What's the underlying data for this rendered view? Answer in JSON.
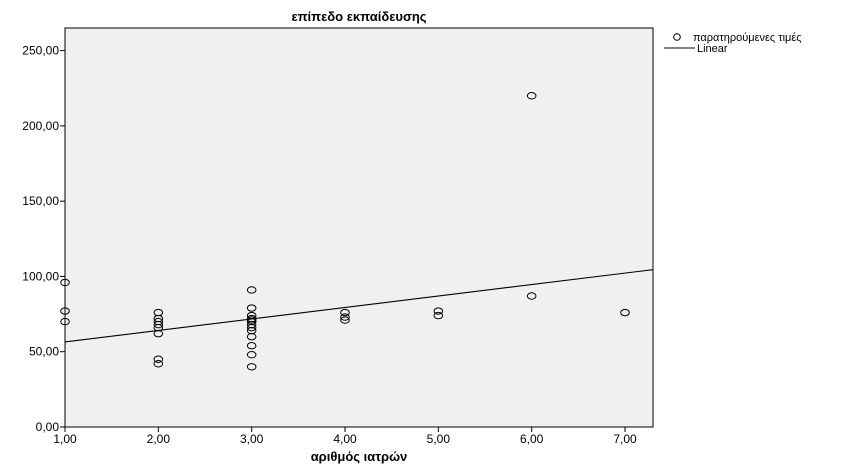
{
  "chart_data": {
    "type": "scatter",
    "title": "επίπεδο εκπαίδευσης",
    "xlabel": "αριθμός ιατρών",
    "ylabel": "",
    "xlim": [
      1.0,
      7.3
    ],
    "ylim": [
      0,
      265
    ],
    "x_ticks": [
      "1,00",
      "2,00",
      "3,00",
      "4,00",
      "5,00",
      "6,00",
      "7,00"
    ],
    "x_tick_values": [
      1,
      2,
      3,
      4,
      5,
      6,
      7
    ],
    "y_ticks": [
      "0,00",
      "50,00",
      "100,00",
      "150,00",
      "200,00",
      "250,00"
    ],
    "y_tick_values": [
      0,
      50,
      100,
      150,
      200,
      250
    ],
    "grid": false,
    "legend_position": "top-right-outside",
    "legend": [
      {
        "label": "παρατηρούμενες τιμές",
        "marker": "circle"
      },
      {
        "label": "Linear",
        "marker": "line"
      }
    ],
    "points": [
      {
        "x": 1,
        "y": 96
      },
      {
        "x": 1,
        "y": 77
      },
      {
        "x": 1,
        "y": 70
      },
      {
        "x": 2,
        "y": 76
      },
      {
        "x": 2,
        "y": 72
      },
      {
        "x": 2,
        "y": 70
      },
      {
        "x": 2,
        "y": 68
      },
      {
        "x": 2,
        "y": 66
      },
      {
        "x": 2,
        "y": 62
      },
      {
        "x": 2,
        "y": 45
      },
      {
        "x": 2,
        "y": 42
      },
      {
        "x": 3,
        "y": 91
      },
      {
        "x": 3,
        "y": 79
      },
      {
        "x": 3,
        "y": 74
      },
      {
        "x": 3,
        "y": 72
      },
      {
        "x": 3,
        "y": 71
      },
      {
        "x": 3,
        "y": 70
      },
      {
        "x": 3,
        "y": 68
      },
      {
        "x": 3,
        "y": 66
      },
      {
        "x": 3,
        "y": 64
      },
      {
        "x": 3,
        "y": 60
      },
      {
        "x": 3,
        "y": 54
      },
      {
        "x": 3,
        "y": 48
      },
      {
        "x": 3,
        "y": 40
      },
      {
        "x": 4,
        "y": 76
      },
      {
        "x": 4,
        "y": 73
      },
      {
        "x": 4,
        "y": 71
      },
      {
        "x": 5,
        "y": 77
      },
      {
        "x": 5,
        "y": 74
      },
      {
        "x": 6,
        "y": 220
      },
      {
        "x": 6,
        "y": 87
      },
      {
        "x": 7,
        "y": 76
      }
    ],
    "fit_line": {
      "x": [
        1.0,
        7.3
      ],
      "y": [
        56.5,
        104.5
      ]
    },
    "colors": {
      "plot_background": "#f0f0f0",
      "marker": "#000000",
      "line": "#000000"
    }
  }
}
